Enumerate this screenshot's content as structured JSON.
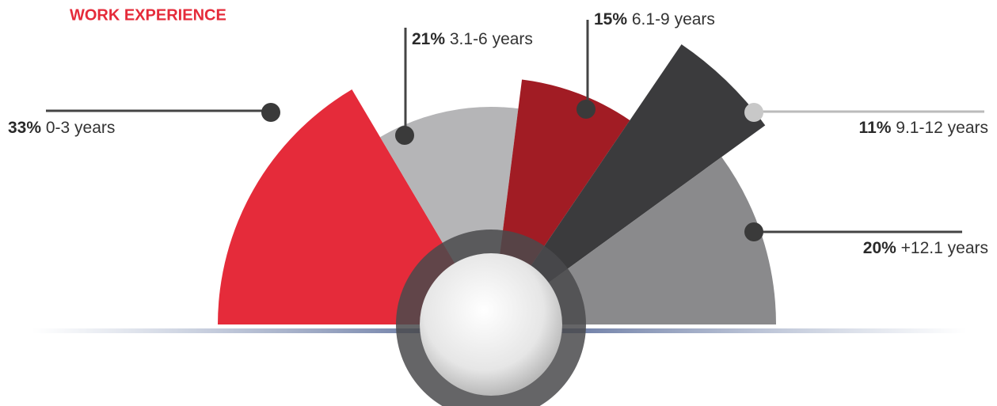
{
  "chart_data": {
    "type": "pie",
    "title": "WORK EXPERIENCE",
    "categories": [
      "0-3 years",
      "3.1-6 years",
      "6.1-9 years",
      "9.1-12 years",
      "+12.1 years"
    ],
    "values": [
      33,
      21,
      15,
      11,
      20
    ],
    "value_labels": [
      "33%",
      "21%",
      "15%",
      "11%",
      "20%"
    ],
    "colors": [
      "#e52b3a",
      "#b5b5b7",
      "#a11c24",
      "#3b3b3d",
      "#8a8a8c"
    ]
  }
}
